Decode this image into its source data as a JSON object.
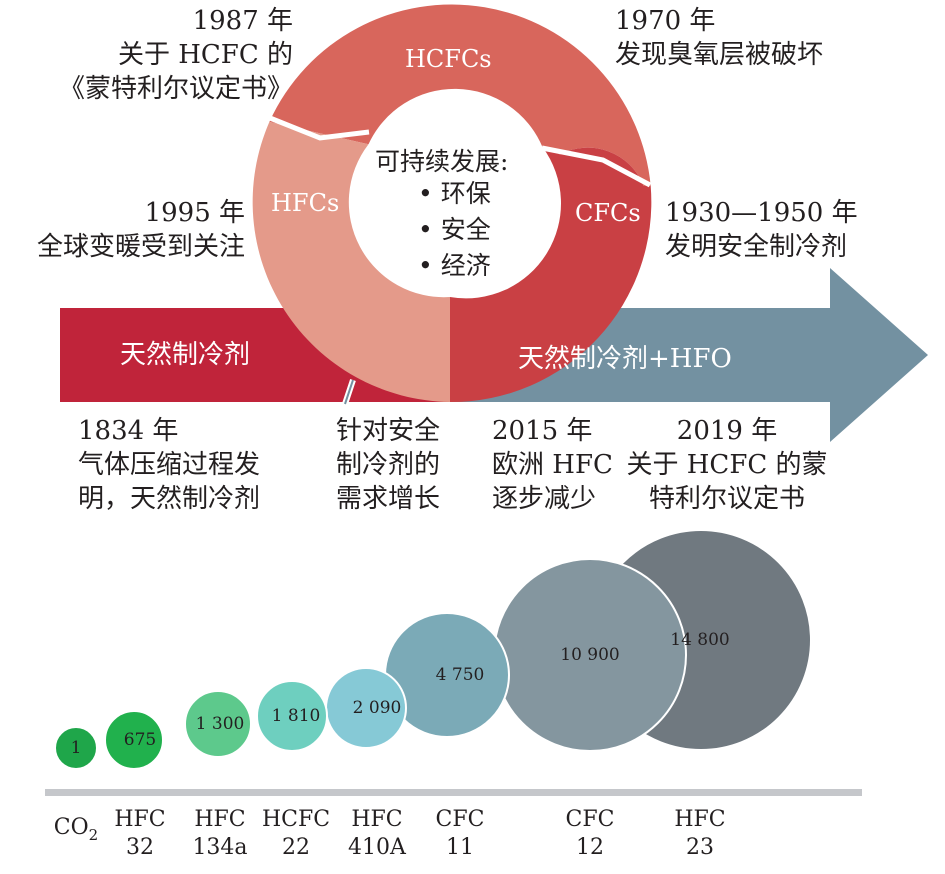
{
  "colors": {
    "hcfc_ring": "#D8665C",
    "hfc_ring": "#E49A8A",
    "cfc_ring": "#C94044",
    "natural_bar": "#C0243A",
    "hfo_arrow": "#7391A1",
    "baseline": "#C5C7CB"
  },
  "ring": {
    "hcfc_label": "HCFCs",
    "hfc_label": "HFCs",
    "cfc_label": "CFCs",
    "center_title": "可持续发展:",
    "center_items": [
      "环保",
      "安全",
      "经济"
    ]
  },
  "timeline": {
    "natural_label": "天然制冷剂",
    "hfo_label": "天然制冷剂+HFO"
  },
  "annotations": {
    "y1987": [
      "1987 年",
      "关于 HCFC 的",
      "《蒙特利尔议定书》"
    ],
    "y1970": [
      "1970 年",
      "发现臭氧层被破坏"
    ],
    "y1995": [
      "1995 年",
      "全球变暖受到关注"
    ],
    "y1930": [
      "1930—1950 年",
      "发明安全制冷剂"
    ],
    "y1834": [
      "1834 年",
      "气体压缩过程发",
      "明，天然制冷剂"
    ],
    "safety": [
      "针对安全",
      "制冷剂的",
      "需求增长"
    ],
    "y2015": [
      "2015 年",
      "欧洲 HFC",
      "逐步减少"
    ],
    "y2019": [
      "2019 年",
      "关于 HCFC 的蒙",
      "特利尔议定书"
    ]
  },
  "chart_data": {
    "type": "bubble",
    "categories": [
      "CO2",
      "HFC 32",
      "HFC 134a",
      "HCFC 22",
      "HFC 410A",
      "CFC 11",
      "CFC 12",
      "HFC 23"
    ],
    "values": [
      1,
      675,
      1300,
      1810,
      2090,
      4750,
      10900,
      14800
    ],
    "value_labels": [
      "1",
      "675",
      "1 300",
      "1 810",
      "2 090",
      "4 750",
      "10 900",
      "14 800"
    ],
    "bubble_colors": [
      "#1FA64A",
      "#21B14D",
      "#5DC98C",
      "#6ECFBF",
      "#86C9D6",
      "#7BAAB7",
      "#84969F",
      "#707980"
    ],
    "axis_labels": [
      {
        "line1": "CO",
        "sub": "2",
        "line2": ""
      },
      {
        "line1": "HFC",
        "sub": "",
        "line2": "32"
      },
      {
        "line1": "HFC",
        "sub": "",
        "line2": "134a"
      },
      {
        "line1": "HCFC",
        "sub": "",
        "line2": "22"
      },
      {
        "line1": "HFC",
        "sub": "",
        "line2": "410A"
      },
      {
        "line1": "CFC",
        "sub": "",
        "line2": "11"
      },
      {
        "line1": "CFC",
        "sub": "",
        "line2": "12"
      },
      {
        "line1": "HFC",
        "sub": "",
        "line2": "23"
      }
    ]
  }
}
